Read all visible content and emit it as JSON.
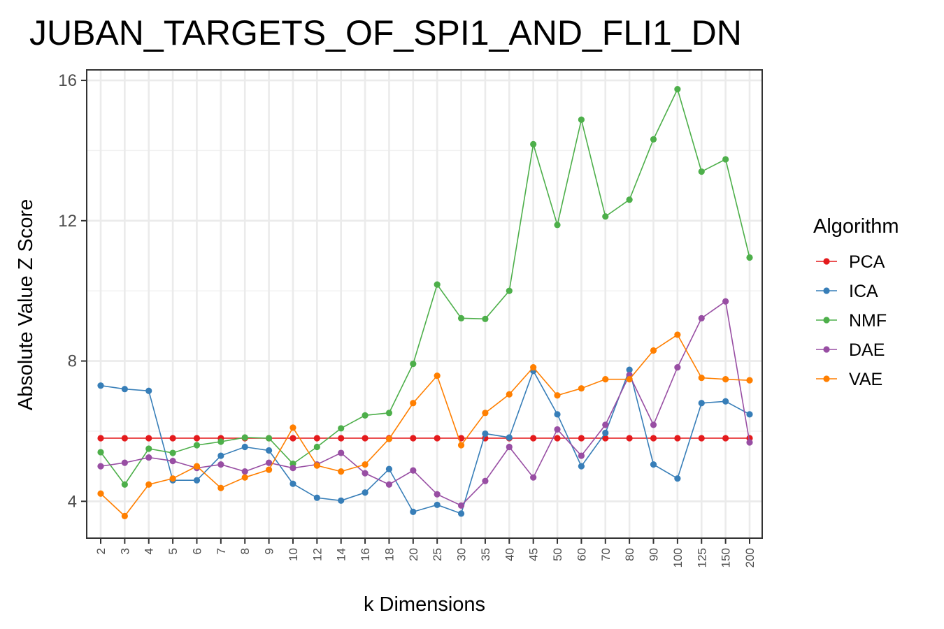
{
  "chart_data": {
    "type": "line",
    "title": "JUBAN_TARGETS_OF_SPI1_AND_FLI1_DN",
    "xlabel": "k Dimensions",
    "ylabel": "Absolute Value Z Score",
    "categories": [
      "2",
      "3",
      "4",
      "5",
      "6",
      "7",
      "8",
      "9",
      "10",
      "12",
      "14",
      "16",
      "18",
      "20",
      "25",
      "30",
      "35",
      "40",
      "45",
      "50",
      "60",
      "70",
      "80",
      "90",
      "100",
      "125",
      "150",
      "200"
    ],
    "ylim": [
      2.95,
      16.3
    ],
    "yticks": [
      4,
      8,
      12,
      16
    ],
    "grid": true,
    "legend": {
      "title": "Algorithm",
      "position": "right"
    },
    "series": [
      {
        "name": "PCA",
        "color": "#e41a1c",
        "values": [
          5.8,
          5.8,
          5.8,
          5.8,
          5.8,
          5.8,
          5.8,
          5.8,
          5.8,
          5.8,
          5.8,
          5.8,
          5.8,
          5.8,
          5.8,
          5.8,
          5.8,
          5.8,
          5.8,
          5.8,
          5.8,
          5.8,
          5.8,
          5.8,
          5.8,
          5.8,
          5.8,
          5.8
        ]
      },
      {
        "name": "ICA",
        "color": "#377eb8",
        "values": [
          7.3,
          7.2,
          7.15,
          4.6,
          4.6,
          5.3,
          5.55,
          5.45,
          4.5,
          4.1,
          4.02,
          4.25,
          4.92,
          3.7,
          3.9,
          3.65,
          5.93,
          5.82,
          7.72,
          6.48,
          5.0,
          5.95,
          7.75,
          5.05,
          4.65,
          6.8,
          6.85,
          6.48
        ]
      },
      {
        "name": "NMF",
        "color": "#4daf4a",
        "values": [
          5.4,
          4.48,
          5.5,
          5.38,
          5.6,
          5.7,
          5.82,
          5.8,
          5.07,
          5.55,
          6.08,
          6.45,
          6.52,
          7.92,
          10.18,
          9.22,
          9.2,
          10.0,
          14.18,
          11.88,
          14.88,
          12.12,
          12.6,
          14.32,
          15.75,
          13.4,
          13.75,
          10.95
        ]
      },
      {
        "name": "DAE",
        "color": "#984ea3",
        "values": [
          5.0,
          5.1,
          5.25,
          5.15,
          4.95,
          5.05,
          4.85,
          5.1,
          4.95,
          5.05,
          5.38,
          4.8,
          4.48,
          4.88,
          4.2,
          3.88,
          4.58,
          5.55,
          4.68,
          6.05,
          5.3,
          6.18,
          7.6,
          6.18,
          7.82,
          9.22,
          9.7,
          5.68
        ]
      },
      {
        "name": "VAE",
        "color": "#ff7f00",
        "values": [
          4.22,
          3.58,
          4.48,
          4.65,
          5.0,
          4.38,
          4.68,
          4.9,
          6.1,
          5.02,
          4.85,
          5.05,
          5.78,
          6.8,
          7.58,
          5.6,
          6.52,
          7.05,
          7.82,
          7.02,
          7.22,
          7.48,
          7.48,
          8.3,
          8.75,
          7.52,
          7.48,
          7.45
        ]
      }
    ]
  }
}
